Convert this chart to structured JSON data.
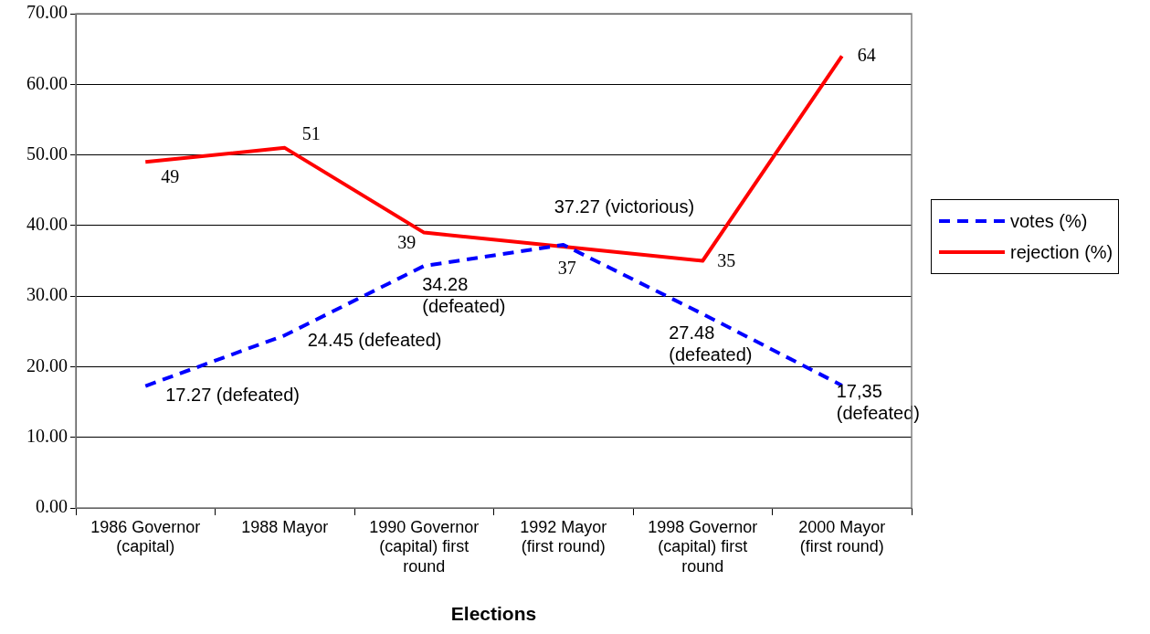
{
  "chart_data": {
    "type": "line",
    "xlabel": "Elections",
    "categories": [
      "1986 Governor\n(capital)",
      "1988 Mayor",
      "1990 Governor\n(capital) first\nround",
      "1992 Mayor\n(first round)",
      "1998 Governor\n(capital) first\nround",
      "2000 Mayor\n(first round)"
    ],
    "series": [
      {
        "name": "votes (%)",
        "color": "#0000ff",
        "line_style": "dashed",
        "values": [
          17.27,
          24.45,
          34.28,
          37.27,
          27.48,
          17.35
        ],
        "value_labels": [
          "17.27 (defeated)",
          "24.45 (defeated)",
          "34.28\n(defeated)",
          "37.27 (victorious)",
          "27.48\n(defeated)",
          "17,35\n(defeated)"
        ]
      },
      {
        "name": "rejection (%)",
        "color": "#ff0000",
        "line_style": "solid",
        "values": [
          49,
          51,
          39,
          37,
          35,
          64
        ],
        "value_labels": [
          "49",
          "51",
          "39",
          "37",
          "35",
          "64"
        ]
      }
    ],
    "ylim": [
      0,
      70
    ],
    "yticks": [
      {
        "value": 0,
        "label": "0.00"
      },
      {
        "value": 10,
        "label": "10.00"
      },
      {
        "value": 20,
        "label": "20.00"
      },
      {
        "value": 30,
        "label": "30.00"
      },
      {
        "value": 40,
        "label": "40.00"
      },
      {
        "value": 50,
        "label": "50.00"
      },
      {
        "value": 60,
        "label": "60.00"
      },
      {
        "value": 70,
        "label": "70.00"
      }
    ],
    "grid": "y",
    "legend": "right",
    "marker": "none"
  }
}
